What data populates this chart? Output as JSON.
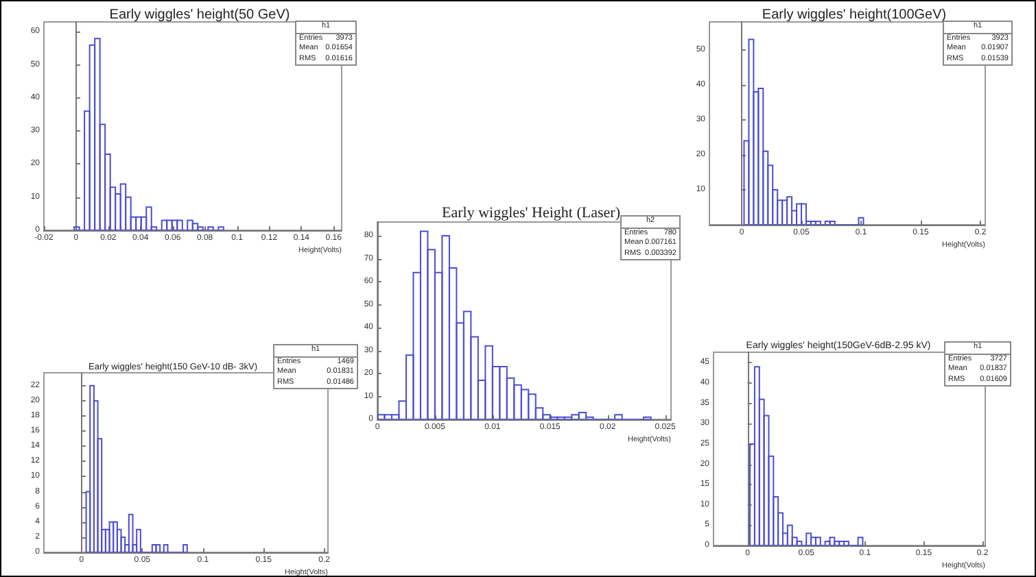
{
  "chart_data": [
    {
      "type": "histogram",
      "title": "Early wiggles' height(50 GeV)",
      "xlabel": "Height(Volts)",
      "color": "#4c4cd4",
      "bins": [
        -0.0012,
        0.002,
        0.0052,
        0.0084,
        0.0116,
        0.0148,
        0.018,
        0.0212,
        0.0244,
        0.0276,
        0.0308,
        0.034,
        0.0372,
        0.0404,
        0.0436,
        0.0468,
        0.05,
        0.0532,
        0.0564,
        0.0596,
        0.0628,
        0.066,
        0.0692,
        0.0724,
        0.0756,
        0.0788,
        0.082,
        0.0852,
        0.0884,
        0.0916
      ],
      "values": [
        1,
        0,
        36,
        56,
        58,
        32,
        23,
        13,
        11,
        14,
        10,
        4,
        4,
        4,
        7,
        1,
        0,
        3,
        3,
        3,
        3,
        0,
        3,
        2,
        1,
        0,
        1,
        0,
        1
      ],
      "xlim": [
        -0.02,
        0.165
      ],
      "xticks": [
        -0.02,
        0,
        0.02,
        0.04,
        0.06,
        0.08,
        0.1,
        0.12,
        0.14,
        0.16
      ],
      "ylim": [
        0,
        63
      ],
      "yticks": [
        0,
        10,
        20,
        30,
        40,
        50,
        60
      ],
      "annotations": [
        "h1",
        "Entries",
        "3973",
        "Mean",
        "0.01654",
        "RMS",
        "0.01616"
      ]
    },
    {
      "type": "histogram",
      "title": "Early wiggles' height(100GeV)",
      "xlabel": "Height(Volts)",
      "color": "#4c4cd4",
      "bins": [
        0.002,
        0.006,
        0.01,
        0.014,
        0.018,
        0.022,
        0.026,
        0.03,
        0.034,
        0.038,
        0.042,
        0.046,
        0.05,
        0.054,
        0.058,
        0.062,
        0.066,
        0.07,
        0.074,
        0.078,
        0.082,
        0.086,
        0.09,
        0.094,
        0.098,
        0.102
      ],
      "values": [
        24,
        53,
        38,
        39,
        21,
        17,
        10,
        7,
        7,
        8,
        4,
        6,
        6,
        1,
        1,
        1,
        0,
        1,
        1,
        0,
        0,
        0,
        0,
        0,
        2
      ],
      "xlim": [
        -0.027,
        0.204
      ],
      "xticks": [
        0,
        0.05,
        0.1,
        0.15,
        0.2
      ],
      "ylim": [
        0,
        58
      ],
      "yticks": [
        {
          "value": 0,
          "label": null
        },
        10,
        20,
        30,
        40,
        50
      ],
      "annotations": [
        "h1",
        "Entries",
        "3923",
        "Mean",
        "0.01907",
        "RMS",
        "0.01539"
      ]
    },
    {
      "type": "histogram",
      "title": "Early wiggles' Height (Laser)",
      "xlabel": "Height(Volts)",
      "color": "#4c4cd4",
      "bins": [
        0,
        0.000625,
        0.00125,
        0.001875,
        0.0025,
        0.003125,
        0.00375,
        0.004375,
        0.005,
        0.005625,
        0.00625,
        0.006875,
        0.0075,
        0.008125,
        0.00875,
        0.009375,
        0.01,
        0.010625,
        0.01125,
        0.011875,
        0.0125,
        0.013125,
        0.01375,
        0.014375,
        0.015,
        0.015625,
        0.01625,
        0.016875,
        0.0175,
        0.018125,
        0.01875,
        0.019375,
        0.02,
        0.020625,
        0.02125,
        0.021875,
        0.0225,
        0.023125,
        0.02375
      ],
      "values": [
        2,
        2,
        2,
        8,
        28,
        64,
        82,
        74,
        64,
        80,
        66,
        42,
        47,
        36,
        17,
        32,
        23,
        23,
        18,
        15,
        13,
        11,
        5,
        2,
        1,
        1,
        1,
        2,
        3,
        1,
        0,
        0,
        0,
        2,
        0,
        0,
        0,
        1
      ],
      "xlim": [
        0,
        0.0255
      ],
      "xticks": [
        0,
        0.005,
        0.01,
        0.015,
        0.02,
        0.025
      ],
      "ylim": [
        0,
        86
      ],
      "yticks": [
        0,
        10,
        20,
        30,
        40,
        50,
        60,
        70,
        80
      ],
      "annotations": [
        "h2",
        "Entries",
        "780",
        "Mean",
        "0.007161",
        "RMS",
        "0.003392"
      ]
    },
    {
      "type": "histogram",
      "title": "Early wiggles' height(150 GeV-10 dB- 3kV)",
      "xlabel": "Height(Volts)",
      "color": "#4c4cd4",
      "bins": [
        0.0038,
        0.007,
        0.0102,
        0.0134,
        0.0166,
        0.0198,
        0.023,
        0.0262,
        0.0294,
        0.0326,
        0.0358,
        0.039,
        0.0422,
        0.0454,
        0.0486,
        0.0518,
        0.055,
        0.0582,
        0.0614,
        0.0646,
        0.0678,
        0.071,
        0.0742,
        0.0774,
        0.0806,
        0.0838,
        0.087
      ],
      "values": [
        8,
        22,
        20,
        15,
        3,
        3,
        4,
        4,
        3,
        2,
        1,
        5,
        1,
        3,
        0,
        0,
        0,
        1,
        1,
        0,
        1,
        0,
        0,
        0,
        0,
        1
      ],
      "xlim": [
        -0.031,
        0.203
      ],
      "xticks": [
        0,
        0.05,
        0.1,
        0.15,
        0.2
      ],
      "ylim": [
        0,
        23.7
      ],
      "yticks": [
        0,
        2,
        4,
        6,
        8,
        10,
        12,
        14,
        16,
        18,
        20,
        22
      ],
      "annotations": [
        "h1",
        "Entries",
        "1469",
        "Mean",
        "0.01831",
        "RMS",
        "0.01486"
      ]
    },
    {
      "type": "histogram",
      "title": "Early wiggles' height(150GeV-6dB-2.95 kV)",
      "xlabel": "Height(Volts)",
      "color": "#4c4cd4",
      "bins": [
        0.002,
        0.006,
        0.01,
        0.014,
        0.018,
        0.022,
        0.026,
        0.03,
        0.034,
        0.038,
        0.042,
        0.046,
        0.05,
        0.054,
        0.058,
        0.062,
        0.066,
        0.07,
        0.074,
        0.078,
        0.082,
        0.086,
        0.09,
        0.094,
        0.098
      ],
      "values": [
        25,
        44,
        36,
        32,
        22,
        12,
        8,
        3,
        5,
        2,
        1,
        0,
        3,
        2,
        2,
        0,
        1,
        2,
        1,
        1,
        1,
        0,
        0,
        2
      ],
      "xlim": [
        -0.029,
        0.2023
      ],
      "xticks": [
        0,
        0.05,
        0.1,
        0.15,
        0.2
      ],
      "ylim": [
        0,
        47.6
      ],
      "yticks": [
        0,
        5,
        10,
        15,
        20,
        25,
        30,
        35,
        40,
        45
      ],
      "annotations": [
        "h1",
        "Entries",
        "3727",
        "Mean",
        "0.01837",
        "RMS",
        "0.01609"
      ]
    }
  ]
}
